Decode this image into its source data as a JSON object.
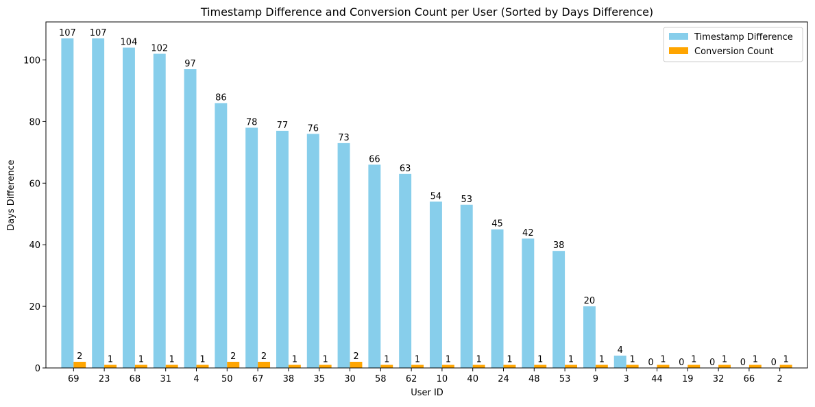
{
  "chart_data": {
    "type": "bar",
    "title": "Timestamp Difference and Conversion Count per User (Sorted by Days Difference)",
    "xlabel": "User ID",
    "ylabel": "Days Difference",
    "ylim": [
      0,
      112.35
    ],
    "yticks": [
      0,
      20,
      40,
      60,
      80,
      100
    ],
    "grid": false,
    "legend_position": "top-right",
    "categories": [
      "69",
      "23",
      "68",
      "31",
      "4",
      "50",
      "67",
      "38",
      "35",
      "30",
      "58",
      "62",
      "10",
      "40",
      "24",
      "48",
      "53",
      "9",
      "3",
      "44",
      "19",
      "32",
      "66",
      "2"
    ],
    "series": [
      {
        "name": "Timestamp Difference",
        "color": "#87ceeb",
        "values": [
          107,
          107,
          104,
          102,
          97,
          86,
          78,
          77,
          76,
          73,
          66,
          63,
          54,
          53,
          45,
          42,
          38,
          20,
          4,
          0,
          0,
          0,
          0,
          0
        ]
      },
      {
        "name": "Conversion Count",
        "color": "#ffa500",
        "values": [
          2,
          1,
          1,
          1,
          1,
          2,
          2,
          1,
          1,
          2,
          1,
          1,
          1,
          1,
          1,
          1,
          1,
          1,
          1,
          1,
          1,
          1,
          1,
          1
        ]
      }
    ]
  }
}
